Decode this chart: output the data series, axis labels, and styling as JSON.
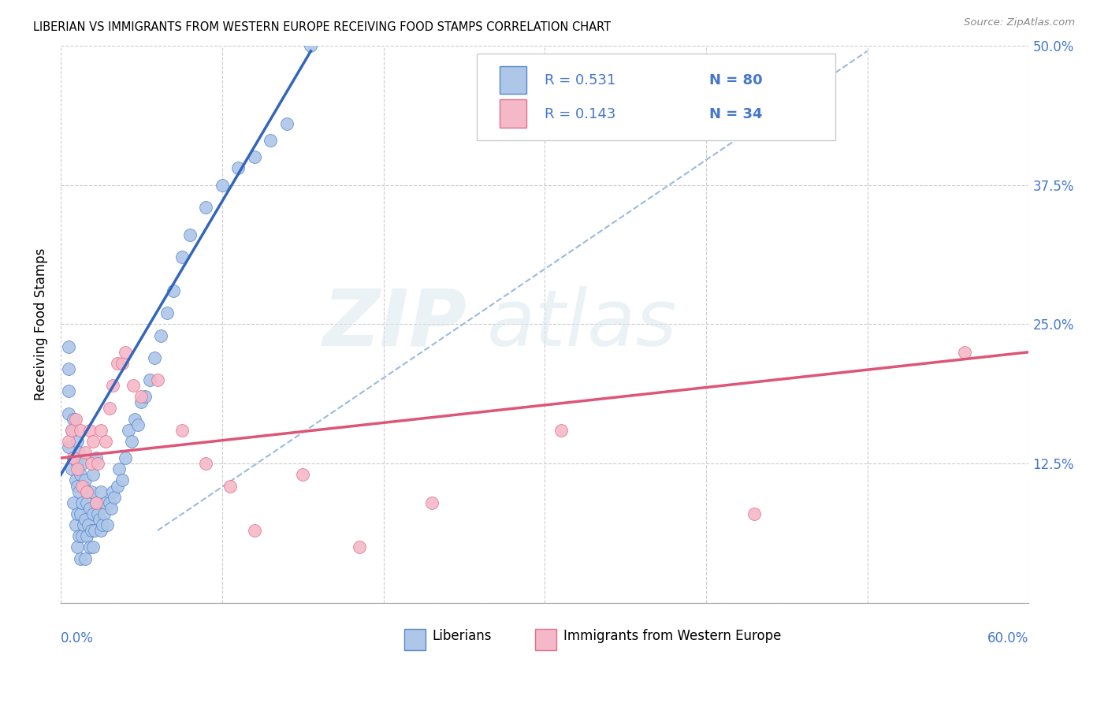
{
  "title": "LIBERIAN VS IMMIGRANTS FROM WESTERN EUROPE RECEIVING FOOD STAMPS CORRELATION CHART",
  "source": "Source: ZipAtlas.com",
  "ylabel": "Receiving Food Stamps",
  "yticks": [
    0.0,
    0.125,
    0.25,
    0.375,
    0.5
  ],
  "ytick_labels": [
    "",
    "12.5%",
    "25.0%",
    "37.5%",
    "50.0%"
  ],
  "xlim": [
    0.0,
    0.6
  ],
  "ylim": [
    0.0,
    0.5
  ],
  "watermark1": "ZIP",
  "watermark2": "atlas",
  "legend_r1": "R = 0.531",
  "legend_n1": "N = 80",
  "legend_r2": "R = 0.143",
  "legend_n2": "N = 34",
  "blue_color": "#aec6e8",
  "pink_color": "#f5b8c8",
  "blue_edge_color": "#5588cc",
  "pink_edge_color": "#e0708a",
  "blue_line_color": "#3366bb",
  "pink_line_color": "#dd5577",
  "text_blue": "#4477cc",
  "blue_scatter_x": [
    0.005,
    0.005,
    0.005,
    0.005,
    0.005,
    0.007,
    0.007,
    0.008,
    0.008,
    0.008,
    0.009,
    0.009,
    0.01,
    0.01,
    0.01,
    0.01,
    0.01,
    0.011,
    0.011,
    0.011,
    0.012,
    0.012,
    0.012,
    0.013,
    0.013,
    0.013,
    0.014,
    0.014,
    0.015,
    0.015,
    0.015,
    0.016,
    0.016,
    0.017,
    0.018,
    0.018,
    0.019,
    0.019,
    0.02,
    0.02,
    0.02,
    0.021,
    0.022,
    0.022,
    0.023,
    0.024,
    0.025,
    0.025,
    0.026,
    0.027,
    0.028,
    0.029,
    0.03,
    0.031,
    0.032,
    0.033,
    0.035,
    0.036,
    0.038,
    0.04,
    0.042,
    0.044,
    0.046,
    0.048,
    0.05,
    0.052,
    0.055,
    0.058,
    0.062,
    0.066,
    0.07,
    0.075,
    0.08,
    0.09,
    0.1,
    0.11,
    0.12,
    0.13,
    0.14,
    0.155
  ],
  "blue_scatter_y": [
    0.14,
    0.17,
    0.19,
    0.21,
    0.23,
    0.12,
    0.155,
    0.09,
    0.13,
    0.165,
    0.07,
    0.11,
    0.05,
    0.08,
    0.105,
    0.125,
    0.145,
    0.06,
    0.1,
    0.135,
    0.04,
    0.08,
    0.115,
    0.06,
    0.09,
    0.125,
    0.07,
    0.105,
    0.04,
    0.075,
    0.11,
    0.06,
    0.09,
    0.07,
    0.05,
    0.085,
    0.065,
    0.1,
    0.05,
    0.08,
    0.115,
    0.065,
    0.09,
    0.13,
    0.08,
    0.075,
    0.065,
    0.1,
    0.07,
    0.08,
    0.09,
    0.07,
    0.09,
    0.085,
    0.1,
    0.095,
    0.105,
    0.12,
    0.11,
    0.13,
    0.155,
    0.145,
    0.165,
    0.16,
    0.18,
    0.185,
    0.2,
    0.22,
    0.24,
    0.26,
    0.28,
    0.31,
    0.33,
    0.355,
    0.375,
    0.39,
    0.4,
    0.415,
    0.43,
    0.5
  ],
  "pink_scatter_x": [
    0.005,
    0.007,
    0.008,
    0.009,
    0.01,
    0.012,
    0.013,
    0.015,
    0.016,
    0.018,
    0.019,
    0.02,
    0.022,
    0.023,
    0.025,
    0.028,
    0.03,
    0.032,
    0.035,
    0.038,
    0.04,
    0.045,
    0.05,
    0.06,
    0.075,
    0.09,
    0.105,
    0.12,
    0.15,
    0.185,
    0.23,
    0.31,
    0.43,
    0.56
  ],
  "pink_scatter_y": [
    0.145,
    0.155,
    0.13,
    0.165,
    0.12,
    0.155,
    0.105,
    0.135,
    0.1,
    0.155,
    0.125,
    0.145,
    0.09,
    0.125,
    0.155,
    0.145,
    0.175,
    0.195,
    0.215,
    0.215,
    0.225,
    0.195,
    0.185,
    0.2,
    0.155,
    0.125,
    0.105,
    0.065,
    0.115,
    0.05,
    0.09,
    0.155,
    0.08,
    0.225
  ],
  "blue_trendline_x": [
    0.0,
    0.155
  ],
  "blue_trendline_y": [
    0.115,
    0.495
  ],
  "pink_trendline_x": [
    0.0,
    0.6
  ],
  "pink_trendline_y": [
    0.13,
    0.225
  ],
  "diag_line_x": [
    0.06,
    0.5
  ],
  "diag_line_y": [
    0.065,
    0.495
  ]
}
